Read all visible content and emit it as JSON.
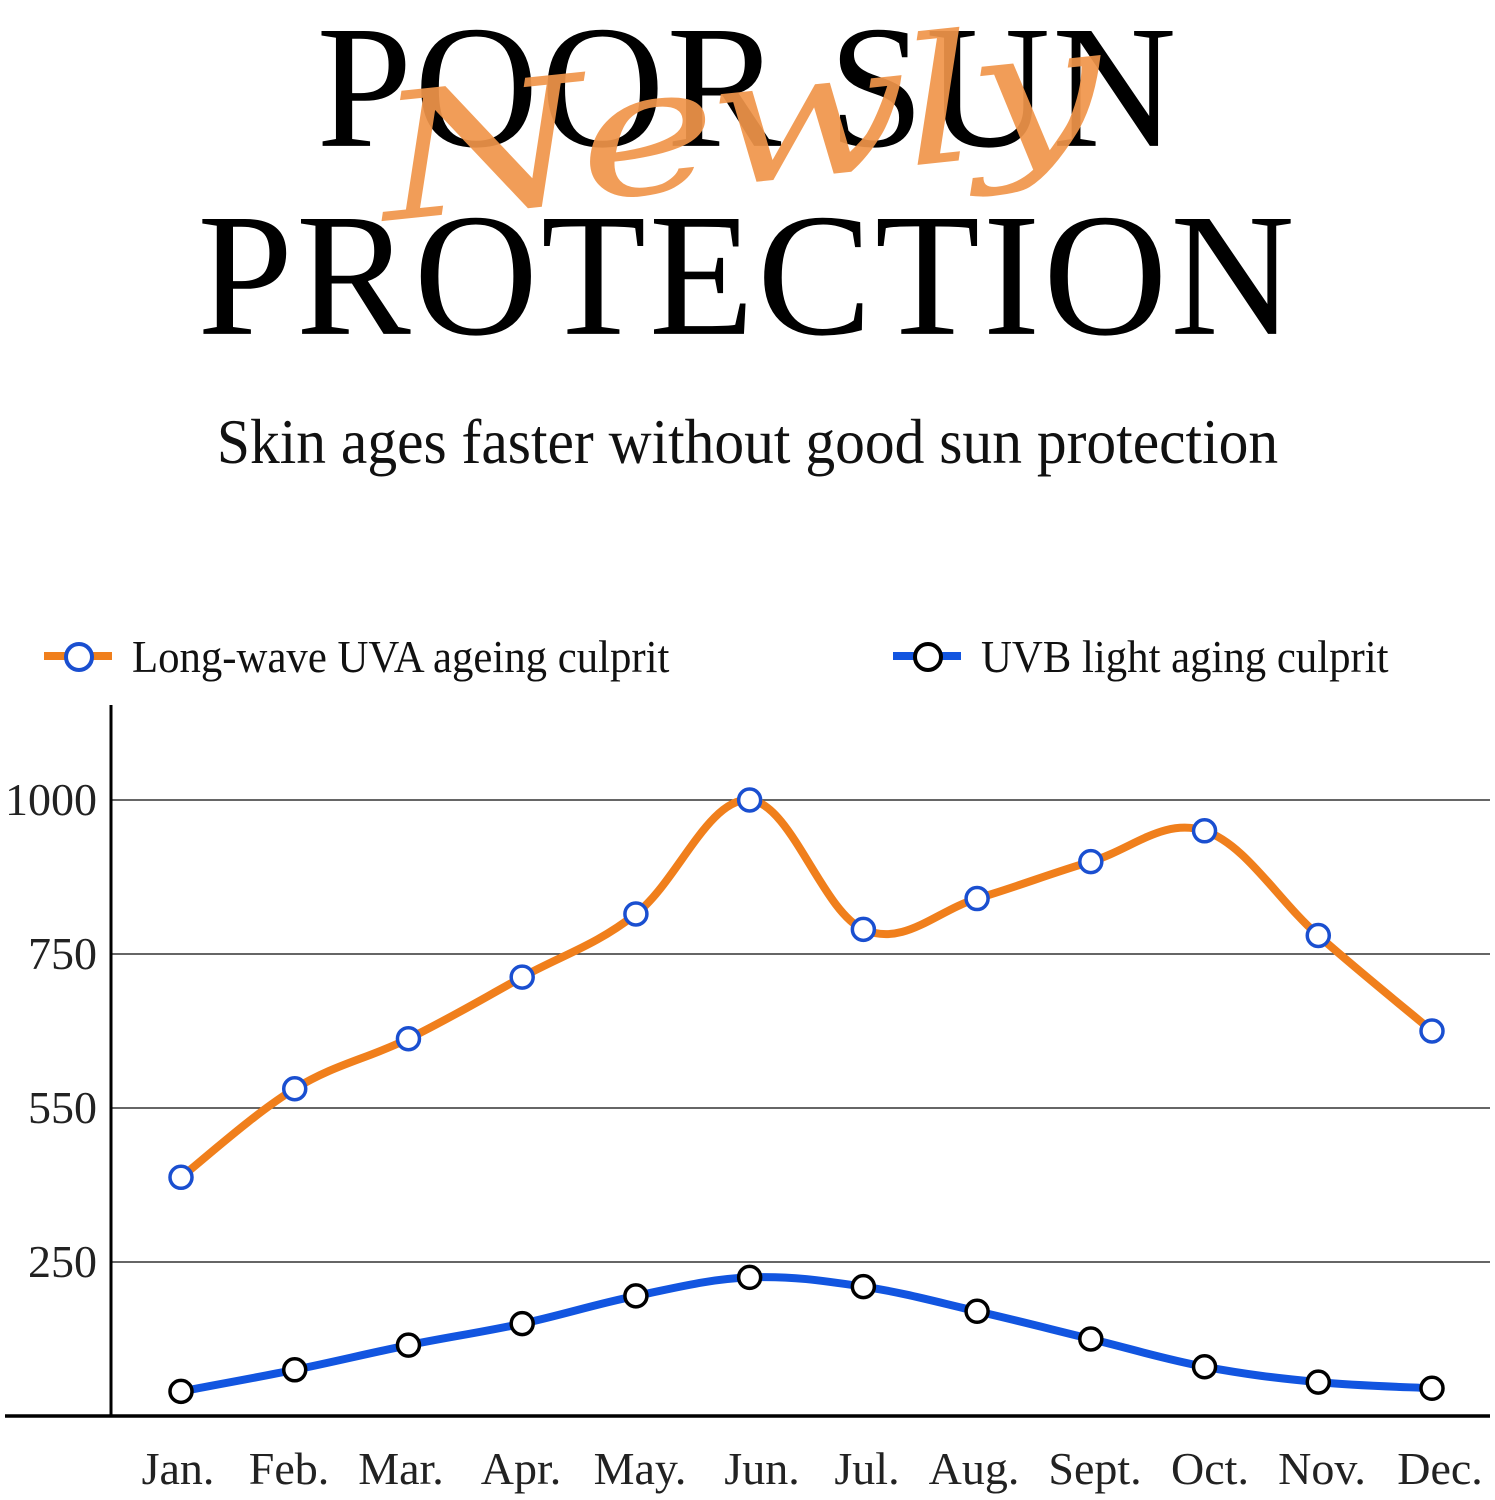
{
  "header": {
    "title_line_1": "POOR SUN",
    "title_line_2": "PROTECTION",
    "script_overlay": "Newly",
    "subtitle": "Skin ages faster without good sun protection"
  },
  "colors": {
    "uva_line": "#f07f1c",
    "uva_marker": "#1a4fd0",
    "uvb_line": "#1255e0",
    "uvb_marker": "#000000",
    "script_overlay": "#f0954a",
    "grid": "#333333"
  },
  "legend": {
    "uva": {
      "label": "Long-wave UVA ageing culprit",
      "icon": "orange-line-blue-circle-marker"
    },
    "uvb": {
      "label": "UVB light aging culprit",
      "icon": "blue-line-black-circle-marker"
    }
  },
  "chart_data": {
    "type": "line",
    "title": "",
    "xlabel": "",
    "ylabel": "",
    "categories": [
      "Jan.",
      "Feb.",
      "Mar.",
      "Apr.",
      "May.",
      "Jun.",
      "Jul.",
      "Aug.",
      "Sept.",
      "Oct.",
      "Nov.",
      "Dec."
    ],
    "yticks": [
      250,
      550,
      750,
      1000
    ],
    "ytick_labels": [
      "250",
      "550",
      "750",
      "1000"
    ],
    "y_scale_note": "tick labels are equally spaced (non-linear axis)",
    "ylim": [
      0,
      1150
    ],
    "grid": true,
    "legend_position": "top",
    "smooth": true,
    "series": [
      {
        "name": "Long-wave UVA ageing culprit",
        "values": [
          415,
          575,
          640,
          720,
          815,
          1000,
          790,
          840,
          900,
          950,
          780,
          650
        ]
      },
      {
        "name": "UVB light aging culprit",
        "values": [
          40,
          75,
          115,
          150,
          195,
          225,
          210,
          170,
          125,
          80,
          55,
          45
        ]
      }
    ]
  }
}
